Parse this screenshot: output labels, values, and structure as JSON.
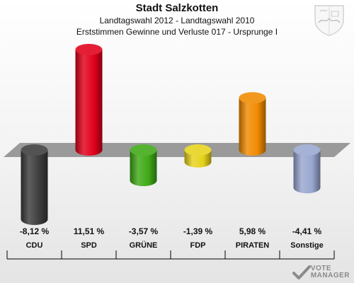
{
  "header": {
    "title": "Stadt Salzkotten",
    "subtitle1": "Landtagswahl 2012 - Landtagswahl 2010",
    "subtitle2": "Erststimmen Gewinne und Verluste 017 - Ursprunge I"
  },
  "logo": {
    "line1": "VOTE",
    "line2": "MANAGER"
  },
  "chart_data": {
    "type": "bar",
    "categories": [
      "CDU",
      "SPD",
      "GRÜNE",
      "FDP",
      "PIRATEN",
      "Sonstige"
    ],
    "values": [
      -8.12,
      11.51,
      -3.57,
      -1.39,
      5.98,
      -4.41
    ],
    "value_labels": [
      "-8,12 %",
      "11,51 %",
      "-3,57 %",
      "-1,39 %",
      "5,98 %",
      "-4,41 %"
    ],
    "colors": [
      "#3c3c3c",
      "#e0001a",
      "#3fa916",
      "#e6d31a",
      "#f08a00",
      "#99a6cf"
    ],
    "ylim": [
      -8.12,
      11.51
    ],
    "grid": false
  }
}
